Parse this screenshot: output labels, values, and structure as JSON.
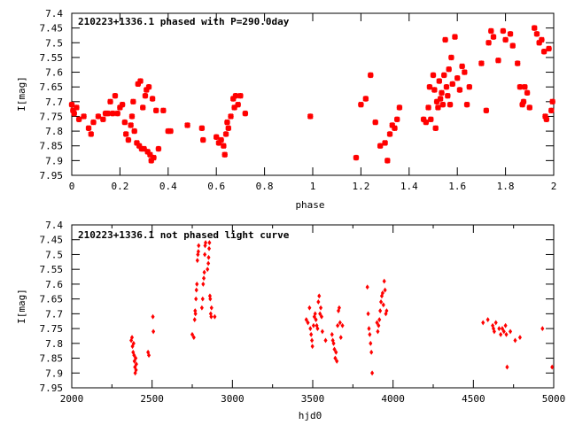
{
  "chart_data": [
    {
      "type": "scatter",
      "title": "210223+1336.1 phased with P=290.0day",
      "xlabel": "phase",
      "ylabel": "I[mag]",
      "xlim": [
        0,
        2
      ],
      "ylim": [
        7.95,
        7.4
      ],
      "y_inverted": true,
      "grid": false,
      "marker": "star",
      "color": "#ff0000",
      "xticks": [
        "0",
        "0.2",
        "0.4",
        "0.6",
        "0.8",
        "1",
        "1.2",
        "1.4",
        "1.6",
        "1.8",
        "2"
      ],
      "yticks": [
        "7.4",
        "7.45",
        "7.5",
        "7.55",
        "7.6",
        "7.65",
        "7.7",
        "7.75",
        "7.8",
        "7.85",
        "7.9",
        "7.95"
      ],
      "points": [
        [
          0.0,
          7.71
        ],
        [
          0.005,
          7.73
        ],
        [
          0.01,
          7.74
        ],
        [
          0.02,
          7.72
        ],
        [
          0.03,
          7.76
        ],
        [
          0.05,
          7.75
        ],
        [
          0.07,
          7.79
        ],
        [
          0.08,
          7.81
        ],
        [
          0.09,
          7.77
        ],
        [
          0.11,
          7.75
        ],
        [
          0.13,
          7.76
        ],
        [
          0.14,
          7.74
        ],
        [
          0.15,
          7.74
        ],
        [
          0.16,
          7.7
        ],
        [
          0.17,
          7.74
        ],
        [
          0.18,
          7.68
        ],
        [
          0.19,
          7.74
        ],
        [
          0.2,
          7.72
        ],
        [
          0.21,
          7.71
        ],
        [
          0.22,
          7.77
        ],
        [
          0.225,
          7.81
        ],
        [
          0.235,
          7.83
        ],
        [
          0.245,
          7.78
        ],
        [
          0.25,
          7.75
        ],
        [
          0.255,
          7.7
        ],
        [
          0.26,
          7.8
        ],
        [
          0.27,
          7.84
        ],
        [
          0.275,
          7.64
        ],
        [
          0.28,
          7.85
        ],
        [
          0.285,
          7.63
        ],
        [
          0.29,
          7.86
        ],
        [
          0.295,
          7.72
        ],
        [
          0.3,
          7.86
        ],
        [
          0.305,
          7.68
        ],
        [
          0.31,
          7.66
        ],
        [
          0.315,
          7.87
        ],
        [
          0.32,
          7.65
        ],
        [
          0.325,
          7.88
        ],
        [
          0.33,
          7.9
        ],
        [
          0.335,
          7.69
        ],
        [
          0.34,
          7.89
        ],
        [
          0.35,
          7.73
        ],
        [
          0.36,
          7.86
        ],
        [
          0.38,
          7.73
        ],
        [
          0.4,
          7.8
        ],
        [
          0.41,
          7.8
        ],
        [
          0.48,
          7.78
        ],
        [
          0.54,
          7.79
        ],
        [
          0.545,
          7.83
        ],
        [
          0.6,
          7.82
        ],
        [
          0.61,
          7.84
        ],
        [
          0.62,
          7.83
        ],
        [
          0.63,
          7.85
        ],
        [
          0.635,
          7.88
        ],
        [
          0.64,
          7.81
        ],
        [
          0.645,
          7.77
        ],
        [
          0.65,
          7.79
        ],
        [
          0.66,
          7.75
        ],
        [
          0.67,
          7.69
        ],
        [
          0.675,
          7.72
        ],
        [
          0.68,
          7.68
        ],
        [
          0.69,
          7.71
        ],
        [
          0.7,
          7.68
        ],
        [
          0.72,
          7.74
        ],
        [
          0.99,
          7.75
        ],
        [
          1.18,
          7.89
        ],
        [
          1.2,
          7.71
        ],
        [
          1.22,
          7.69
        ],
        [
          1.24,
          7.61
        ],
        [
          1.26,
          7.77
        ],
        [
          1.28,
          7.85
        ],
        [
          1.3,
          7.84
        ],
        [
          1.31,
          7.9
        ],
        [
          1.32,
          7.81
        ],
        [
          1.33,
          7.78
        ],
        [
          1.34,
          7.79
        ],
        [
          1.35,
          7.76
        ],
        [
          1.36,
          7.72
        ],
        [
          1.46,
          7.76
        ],
        [
          1.47,
          7.77
        ],
        [
          1.48,
          7.72
        ],
        [
          1.485,
          7.65
        ],
        [
          1.49,
          7.76
        ],
        [
          1.5,
          7.61
        ],
        [
          1.505,
          7.66
        ],
        [
          1.51,
          7.79
        ],
        [
          1.515,
          7.7
        ],
        [
          1.52,
          7.72
        ],
        [
          1.525,
          7.63
        ],
        [
          1.53,
          7.69
        ],
        [
          1.535,
          7.67
        ],
        [
          1.54,
          7.71
        ],
        [
          1.545,
          7.61
        ],
        [
          1.55,
          7.49
        ],
        [
          1.555,
          7.65
        ],
        [
          1.56,
          7.68
        ],
        [
          1.565,
          7.59
        ],
        [
          1.57,
          7.71
        ],
        [
          1.575,
          7.55
        ],
        [
          1.58,
          7.64
        ],
        [
          1.59,
          7.48
        ],
        [
          1.6,
          7.62
        ],
        [
          1.61,
          7.66
        ],
        [
          1.62,
          7.58
        ],
        [
          1.63,
          7.6
        ],
        [
          1.64,
          7.71
        ],
        [
          1.65,
          7.65
        ],
        [
          1.7,
          7.57
        ],
        [
          1.72,
          7.73
        ],
        [
          1.73,
          7.5
        ],
        [
          1.74,
          7.46
        ],
        [
          1.75,
          7.48
        ],
        [
          1.77,
          7.56
        ],
        [
          1.79,
          7.46
        ],
        [
          1.8,
          7.49
        ],
        [
          1.82,
          7.47
        ],
        [
          1.83,
          7.51
        ],
        [
          1.85,
          7.57
        ],
        [
          1.86,
          7.65
        ],
        [
          1.87,
          7.71
        ],
        [
          1.875,
          7.7
        ],
        [
          1.88,
          7.65
        ],
        [
          1.89,
          7.67
        ],
        [
          1.9,
          7.72
        ],
        [
          1.92,
          7.45
        ],
        [
          1.93,
          7.47
        ],
        [
          1.94,
          7.5
        ],
        [
          1.95,
          7.49
        ],
        [
          1.96,
          7.53
        ],
        [
          1.965,
          7.75
        ],
        [
          1.97,
          7.76
        ],
        [
          1.98,
          7.52
        ],
        [
          1.99,
          7.73
        ],
        [
          1.995,
          7.7
        ]
      ]
    },
    {
      "type": "scatter",
      "title": "210223+1336.1 not phased light curve",
      "xlabel": "hjd0",
      "ylabel": "I[mag]",
      "xlim": [
        2000,
        5000
      ],
      "ylim": [
        7.95,
        7.4
      ],
      "y_inverted": true,
      "grid": false,
      "marker": "diamond",
      "color": "#ff0000",
      "xticks": [
        "2000",
        "2500",
        "3000",
        "3500",
        "4000",
        "4500",
        "5000"
      ],
      "yticks": [
        "7.4",
        "7.45",
        "7.5",
        "7.55",
        "7.6",
        "7.65",
        "7.7",
        "7.75",
        "7.8",
        "7.85",
        "7.9",
        "7.95"
      ],
      "points": [
        [
          2370,
          7.79
        ],
        [
          2375,
          7.78
        ],
        [
          2378,
          7.81
        ],
        [
          2382,
          7.83
        ],
        [
          2385,
          7.8
        ],
        [
          2388,
          7.84
        ],
        [
          2390,
          7.86
        ],
        [
          2393,
          7.88
        ],
        [
          2395,
          7.9
        ],
        [
          2398,
          7.85
        ],
        [
          2400,
          7.89
        ],
        [
          2402,
          7.87
        ],
        [
          2475,
          7.83
        ],
        [
          2480,
          7.84
        ],
        [
          2505,
          7.71
        ],
        [
          2508,
          7.76
        ],
        [
          2750,
          7.77
        ],
        [
          2760,
          7.78
        ],
        [
          2765,
          7.72
        ],
        [
          2768,
          7.69
        ],
        [
          2770,
          7.7
        ],
        [
          2773,
          7.65
        ],
        [
          2776,
          7.62
        ],
        [
          2779,
          7.6
        ],
        [
          2782,
          7.52
        ],
        [
          2785,
          7.5
        ],
        [
          2788,
          7.49
        ],
        [
          2790,
          7.47
        ],
        [
          2810,
          7.68
        ],
        [
          2815,
          7.65
        ],
        [
          2818,
          7.6
        ],
        [
          2822,
          7.58
        ],
        [
          2825,
          7.56
        ],
        [
          2828,
          7.5
        ],
        [
          2830,
          7.47
        ],
        [
          2833,
          7.46
        ],
        [
          2845,
          7.55
        ],
        [
          2850,
          7.53
        ],
        [
          2852,
          7.51
        ],
        [
          2855,
          7.48
        ],
        [
          2857,
          7.46
        ],
        [
          2860,
          7.64
        ],
        [
          2862,
          7.65
        ],
        [
          2865,
          7.7
        ],
        [
          2868,
          7.71
        ],
        [
          2870,
          7.68
        ],
        [
          2890,
          7.71
        ],
        [
          3460,
          7.72
        ],
        [
          3470,
          7.73
        ],
        [
          3480,
          7.68
        ],
        [
          3485,
          7.75
        ],
        [
          3490,
          7.77
        ],
        [
          3495,
          7.79
        ],
        [
          3498,
          7.81
        ],
        [
          3505,
          7.74
        ],
        [
          3510,
          7.71
        ],
        [
          3515,
          7.7
        ],
        [
          3520,
          7.72
        ],
        [
          3525,
          7.74
        ],
        [
          3530,
          7.75
        ],
        [
          3535,
          7.66
        ],
        [
          3540,
          7.64
        ],
        [
          3545,
          7.7
        ],
        [
          3550,
          7.68
        ],
        [
          3555,
          7.71
        ],
        [
          3560,
          7.76
        ],
        [
          3580,
          7.79
        ],
        [
          3620,
          7.77
        ],
        [
          3625,
          7.79
        ],
        [
          3630,
          7.8
        ],
        [
          3635,
          7.82
        ],
        [
          3640,
          7.85
        ],
        [
          3645,
          7.83
        ],
        [
          3650,
          7.86
        ],
        [
          3655,
          7.74
        ],
        [
          3660,
          7.69
        ],
        [
          3665,
          7.68
        ],
        [
          3670,
          7.73
        ],
        [
          3675,
          7.78
        ],
        [
          3685,
          7.74
        ],
        [
          3840,
          7.61
        ],
        [
          3845,
          7.7
        ],
        [
          3850,
          7.75
        ],
        [
          3855,
          7.77
        ],
        [
          3860,
          7.8
        ],
        [
          3865,
          7.83
        ],
        [
          3870,
          7.9
        ],
        [
          3900,
          7.73
        ],
        [
          3905,
          7.76
        ],
        [
          3910,
          7.74
        ],
        [
          3915,
          7.72
        ],
        [
          3920,
          7.69
        ],
        [
          3925,
          7.66
        ],
        [
          3930,
          7.64
        ],
        [
          3935,
          7.63
        ],
        [
          3940,
          7.67
        ],
        [
          3945,
          7.59
        ],
        [
          3950,
          7.62
        ],
        [
          3955,
          7.7
        ],
        [
          3960,
          7.69
        ],
        [
          4560,
          7.73
        ],
        [
          4590,
          7.72
        ],
        [
          4620,
          7.74
        ],
        [
          4625,
          7.75
        ],
        [
          4630,
          7.76
        ],
        [
          4640,
          7.73
        ],
        [
          4660,
          7.75
        ],
        [
          4670,
          7.77
        ],
        [
          4680,
          7.75
        ],
        [
          4690,
          7.76
        ],
        [
          4700,
          7.74
        ],
        [
          4705,
          7.77
        ],
        [
          4710,
          7.88
        ],
        [
          4730,
          7.76
        ],
        [
          4760,
          7.79
        ],
        [
          4790,
          7.78
        ],
        [
          4930,
          7.75
        ],
        [
          4990,
          7.88
        ]
      ]
    }
  ]
}
